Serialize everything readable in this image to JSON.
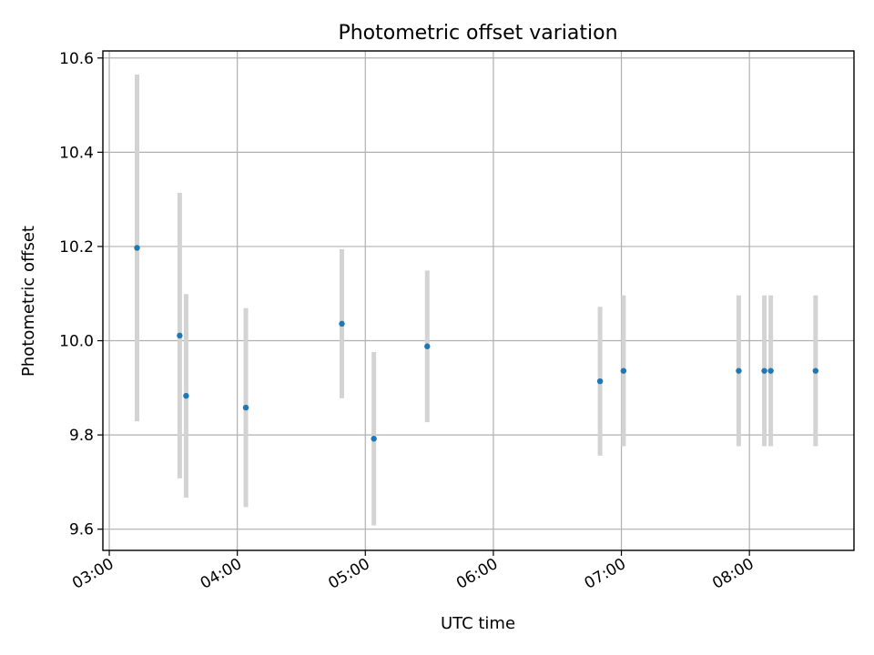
{
  "chart_data": {
    "type": "scatter",
    "title": "Photometric offset variation",
    "xlabel": "UTC time",
    "ylabel": "Photometric offset",
    "x_axis": "time",
    "xlim": [
      "02:57",
      "08:49"
    ],
    "ylim": [
      9.555,
      10.615
    ],
    "x_ticks": [
      "03:00",
      "04:00",
      "05:00",
      "06:00",
      "07:00",
      "08:00"
    ],
    "y_ticks": [
      "9.6",
      "9.8",
      "10.0",
      "10.2",
      "10.4",
      "10.6"
    ],
    "grid": true,
    "series": [
      {
        "marker_color": "#1f77b4",
        "errorbar_color": "#d3d3d3",
        "points": [
          {
            "x": "03:13",
            "y": 10.197,
            "err": 0.368
          },
          {
            "x": "03:33",
            "y": 10.011,
            "err": 0.303
          },
          {
            "x": "03:36",
            "y": 9.883,
            "err": 0.216
          },
          {
            "x": "04:04",
            "y": 9.858,
            "err": 0.211
          },
          {
            "x": "04:49",
            "y": 10.036,
            "err": 0.158
          },
          {
            "x": "05:04",
            "y": 9.792,
            "err": 0.184
          },
          {
            "x": "05:29",
            "y": 9.988,
            "err": 0.161
          },
          {
            "x": "06:50",
            "y": 9.914,
            "err": 0.158
          },
          {
            "x": "07:01",
            "y": 9.936,
            "err": 0.16
          },
          {
            "x": "07:55",
            "y": 9.936,
            "err": 0.16
          },
          {
            "x": "08:07",
            "y": 9.936,
            "err": 0.16
          },
          {
            "x": "08:10",
            "y": 9.936,
            "err": 0.16
          },
          {
            "x": "08:31",
            "y": 9.936,
            "err": 0.16
          }
        ]
      }
    ]
  }
}
